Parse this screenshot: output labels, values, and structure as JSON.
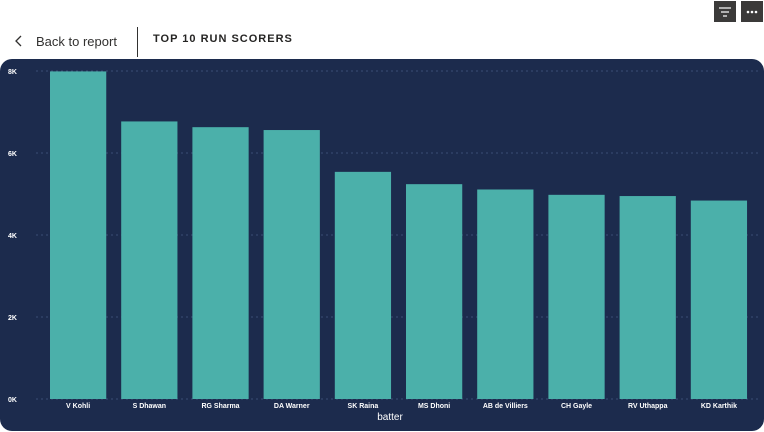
{
  "toolbar": {
    "filter_icon": "filter-icon",
    "more_icon": "more-options-icon"
  },
  "header": {
    "back_label": "Back to report",
    "title": "TOP 10 RUN SCORERS"
  },
  "colors": {
    "panel": "#1c2b4d",
    "bar": "#4bb0aa",
    "text": "#ffffff"
  },
  "chart_data": {
    "type": "bar",
    "categories": [
      "V Kohli",
      "S Dhawan",
      "RG Sharma",
      "DA Warner",
      "SK Raina",
      "MS Dhoni",
      "AB de Villiers",
      "CH Gayle",
      "RV Uthappa",
      "KD Karthik"
    ],
    "values": [
      7990,
      6770,
      6630,
      6560,
      5540,
      5240,
      5110,
      4980,
      4950,
      4840
    ],
    "xlabel": "batter",
    "ylabel": "",
    "yticks": [
      "0K",
      "2K",
      "4K",
      "6K",
      "8K"
    ],
    "ylim": [
      0,
      8000
    ],
    "grid": true
  }
}
